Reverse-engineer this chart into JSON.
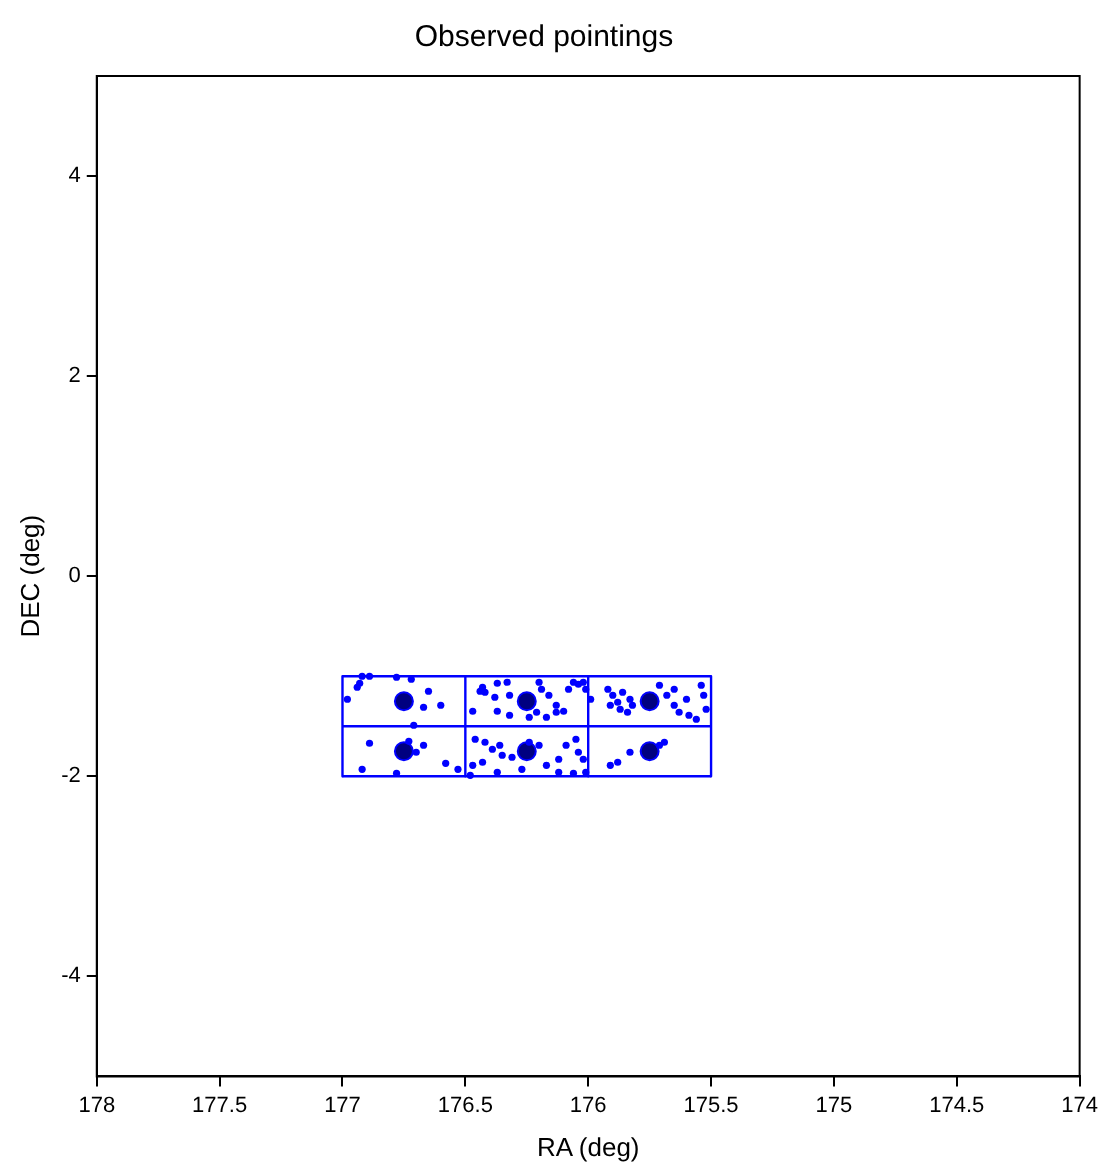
{
  "chart_data": {
    "type": "scatter",
    "title": "Observed pointings",
    "xlabel": "RA (deg)",
    "ylabel": "DEC (deg)",
    "xlim": [
      178,
      174
    ],
    "xticks": [
      178,
      177.5,
      177,
      176.5,
      176,
      175.5,
      175,
      174.5,
      174
    ],
    "ylim": [
      -5,
      5
    ],
    "yticks": [
      -4,
      -2,
      0,
      2,
      4
    ],
    "grid": false,
    "legend": false,
    "series": [
      {
        "type": "line",
        "color": "#0000ff",
        "marker": "none",
        "x": [
          177,
          176.5,
          176,
          175.5
        ],
        "values": [
          -1,
          -1,
          -1,
          -1
        ]
      },
      {
        "type": "line",
        "color": "#0000ff",
        "marker": "none",
        "x": [
          177,
          176.5,
          176,
          175.5
        ],
        "values": [
          -1.5,
          -1.5,
          -1.5,
          -1.5
        ]
      },
      {
        "type": "line",
        "color": "#0000ff",
        "marker": "none",
        "x": [
          177,
          176.5,
          176,
          175.5
        ],
        "values": [
          -2,
          -2,
          -2,
          -2
        ]
      },
      {
        "type": "line",
        "color": "#0000ff",
        "marker": "none",
        "x": [
          177,
          177,
          177
        ],
        "values": [
          -1,
          -1.5,
          -2
        ]
      },
      {
        "type": "line",
        "color": "#0000ff",
        "marker": "none",
        "x": [
          176.5,
          176.5,
          176.5
        ],
        "values": [
          -1,
          -1.5,
          -2
        ]
      },
      {
        "type": "line",
        "color": "#0000ff",
        "marker": "none",
        "x": [
          176,
          176,
          176
        ],
        "values": [
          -1,
          -1.5,
          -2
        ]
      },
      {
        "type": "line",
        "color": "#0000ff",
        "marker": "none",
        "x": [
          175.5,
          175.5,
          175.5
        ],
        "values": [
          -1,
          -1.5,
          -2
        ]
      },
      {
        "type": "scatter",
        "color": "#0000ff",
        "marker": "circle",
        "x": [
          176.92,
          176.89,
          176.93,
          176.94,
          176.78,
          176.72,
          176.98,
          176.65,
          176.67,
          176.6,
          176.71,
          176.89,
          176.73,
          176.67,
          176.7,
          176.92,
          176.78,
          176.58,
          176.53,
          176.43,
          176.44,
          176.42,
          176.37,
          176.38,
          176.33,
          176.32,
          176.2,
          176.19,
          176.16,
          176.13,
          176.1,
          176.08,
          176.06,
          176.04,
          176.47,
          176.37,
          176.32,
          176.24,
          176.21,
          176.17,
          176.13,
          176.46,
          176.42,
          176.39,
          176.36,
          176.35,
          176.43,
          176.47,
          176.31,
          176.24,
          176.2,
          176.17,
          176.12,
          176.09,
          176.12,
          176.05,
          176.04,
          176.48,
          176.37,
          176.27,
          176.06,
          176.02,
          176.01,
          175.99,
          175.92,
          175.9,
          175.88,
          175.86,
          175.83,
          175.91,
          175.87,
          175.84,
          175.82,
          175.71,
          175.68,
          175.65,
          175.65,
          175.63,
          175.6,
          175.59,
          175.56,
          175.54,
          175.53,
          175.52,
          175.71,
          175.69,
          175.91,
          175.88,
          175.83,
          176.02,
          176.01
        ],
        "values": [
          -1.0,
          -1.0,
          -1.07,
          -1.11,
          -1.01,
          -1.03,
          -1.23,
          -1.15,
          -1.31,
          -1.29,
          -1.49,
          -1.67,
          -1.65,
          -1.69,
          -1.76,
          -1.93,
          -1.97,
          -1.87,
          -1.93,
          -1.11,
          -1.15,
          -1.16,
          -1.07,
          -1.21,
          -1.06,
          -1.19,
          -1.06,
          -1.13,
          -1.19,
          -1.29,
          -1.35,
          -1.13,
          -1.06,
          -1.08,
          -1.35,
          -1.35,
          -1.39,
          -1.41,
          -1.36,
          -1.41,
          -1.36,
          -1.63,
          -1.66,
          -1.73,
          -1.69,
          -1.79,
          -1.86,
          -1.89,
          -1.81,
          -1.66,
          -1.69,
          -1.89,
          -1.83,
          -1.69,
          -1.96,
          -1.63,
          -1.76,
          -1.99,
          -1.96,
          -1.93,
          -1.97,
          -1.06,
          -1.13,
          -1.23,
          -1.13,
          -1.19,
          -1.26,
          -1.16,
          -1.23,
          -1.29,
          -1.33,
          -1.36,
          -1.29,
          -1.09,
          -1.19,
          -1.13,
          -1.29,
          -1.36,
          -1.23,
          -1.39,
          -1.43,
          -1.09,
          -1.19,
          -1.33,
          -1.69,
          -1.66,
          -1.89,
          -1.86,
          -1.76,
          -1.83,
          -1.96
        ]
      },
      {
        "color": "#000080",
        "marker": "circle",
        "x": [
          176.75,
          176.25,
          175.75,
          176.75,
          176.25,
          175.75
        ],
        "values": [
          -1.25,
          -1.25,
          -1.25,
          -1.75,
          -1.75,
          -1.75
        ]
      }
    ]
  }
}
